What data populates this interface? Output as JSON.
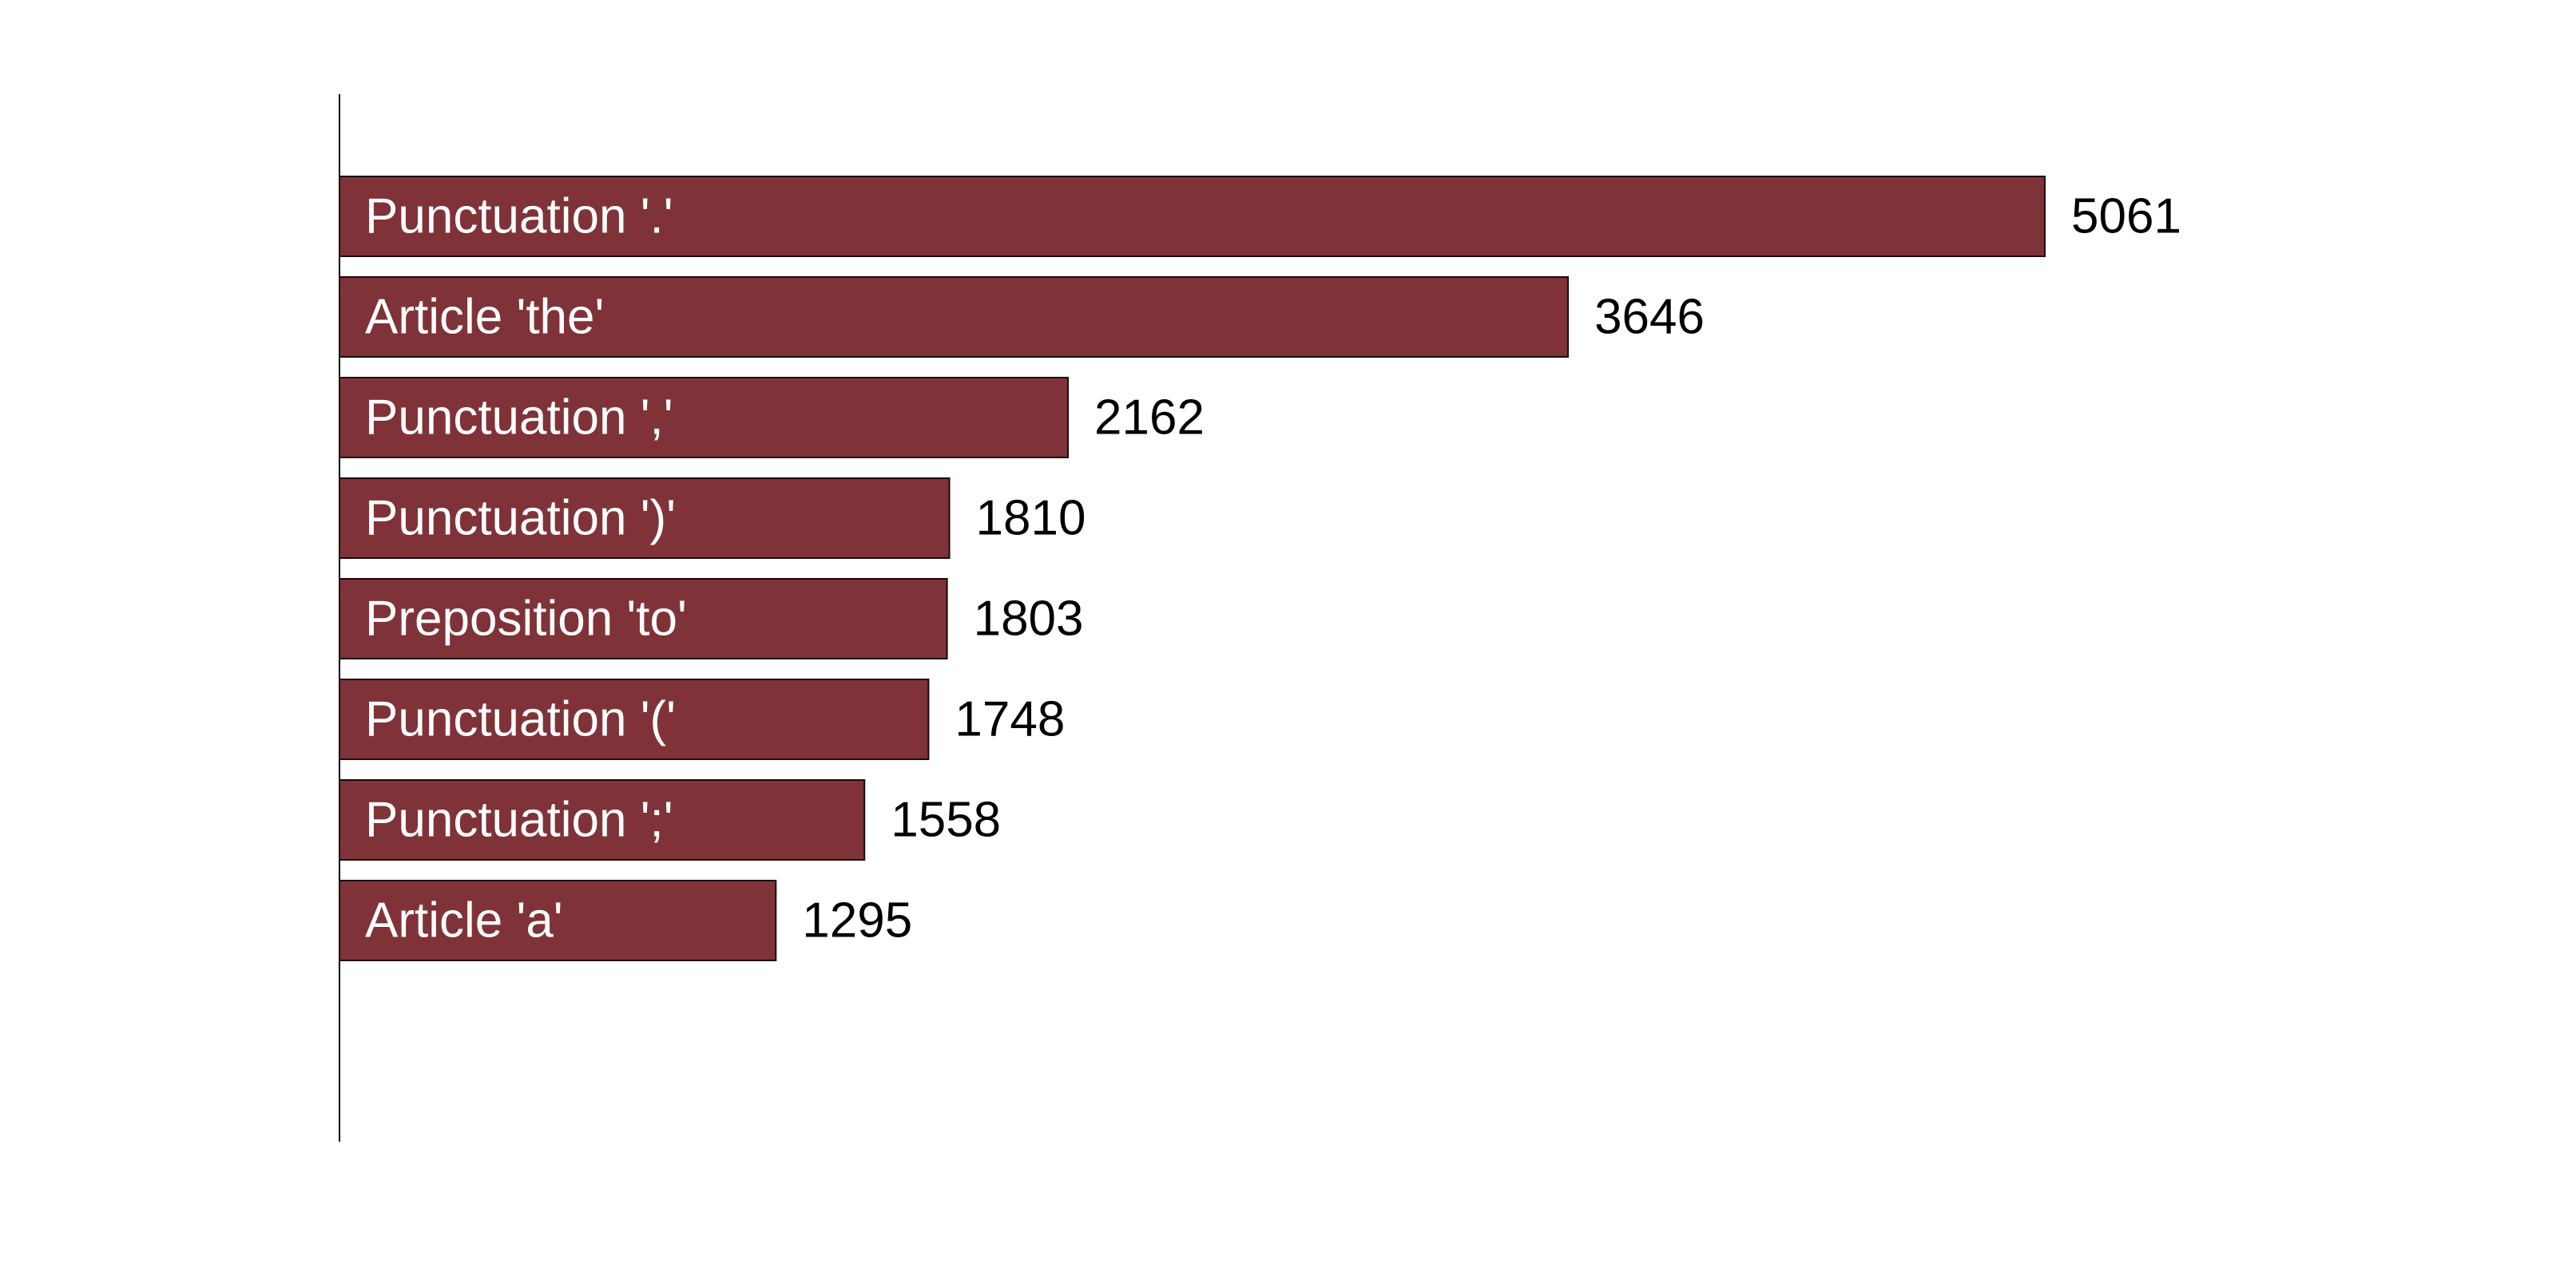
{
  "chart_data": {
    "type": "bar",
    "orientation": "horizontal",
    "categories": [
      "Punctuation '.'",
      "Article 'the'",
      "Punctuation ','",
      "Punctuation ')'",
      "Preposition 'to'",
      "Punctuation '('",
      "Punctuation ';'",
      "Article 'a'"
    ],
    "values": [
      5061,
      3646,
      2162,
      1810,
      1803,
      1748,
      1558,
      1295
    ],
    "title": "",
    "xlabel": "",
    "ylabel": "",
    "xlim": [
      0,
      5061
    ],
    "grid": false,
    "legend": "none",
    "bar_color": "#7f3338",
    "bar_edge_color": "#1a0a0b",
    "label_color_inside": "#ffffff",
    "label_color_outside": "#000000"
  }
}
